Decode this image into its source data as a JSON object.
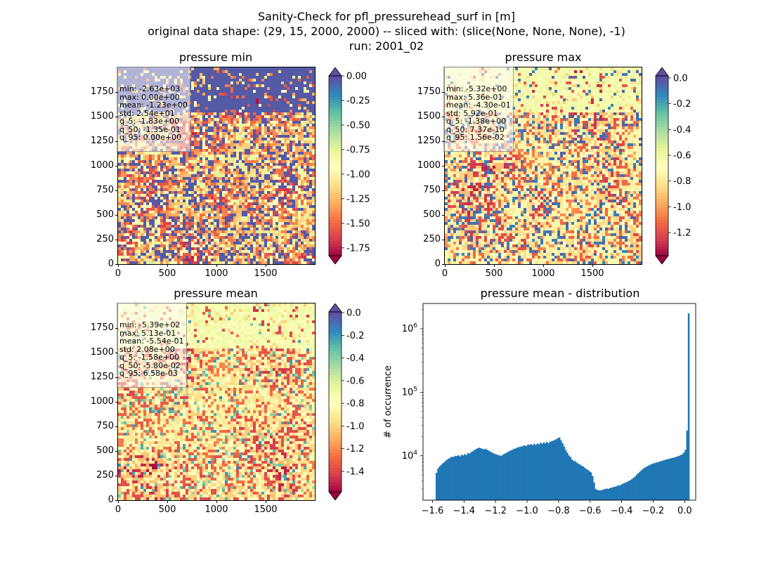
{
  "figure": {
    "title_lines": [
      "Sanity-Check for pfl_pressurehead_surf in [m]",
      "original data shape: (29, 15, 2000, 2000) -- sliced with: (slice(None, None, None), -1)",
      "run: 2001_02"
    ]
  },
  "panels": [
    {
      "title": "pressure min",
      "stats": [
        "min: -2.63e+03",
        "max: 0.00e+00",
        "mean: -1.23e+00",
        "std: 2.54e+01",
        "q_5: -1.83e+00",
        "q_50: -1.35e-01",
        "q_95: 0.00e+00"
      ],
      "x_ticks": [
        "0",
        "500",
        "1000",
        "1500"
      ],
      "y_ticks": [
        "0",
        "250",
        "500",
        "750",
        "1000",
        "1250",
        "1500",
        "1750"
      ],
      "colorbar_ticks": [
        "0.00",
        "-0.25",
        "-0.50",
        "-0.75",
        "-1.00",
        "-1.25",
        "-1.50",
        "-1.75"
      ],
      "colorbar_values": [
        0.0,
        -0.25,
        -0.5,
        -0.75,
        -1.0,
        -1.25,
        -1.5,
        -1.75
      ],
      "colorbar_range": [
        -1.83,
        0.0
      ]
    },
    {
      "title": "pressure max",
      "stats": [
        "min: -5.32e+00",
        "max: 5.36e-01",
        "mean: -4.30e-01",
        "std: 5.92e-01",
        "q_5: -1.38e+00",
        "q_50: 7.37e-10",
        "q_95: 1.56e-02"
      ],
      "x_ticks": [
        "0",
        "500",
        "1000",
        "1500"
      ],
      "y_ticks": [
        "0",
        "250",
        "500",
        "750",
        "1000",
        "1250",
        "1500",
        "1750"
      ],
      "colorbar_ticks": [
        "0.0",
        "-0.2",
        "-0.4",
        "-0.6",
        "-0.8",
        "-1.0",
        "-1.2"
      ],
      "colorbar_values": [
        0.0,
        -0.2,
        -0.4,
        -0.6,
        -0.8,
        -1.0,
        -1.2
      ],
      "colorbar_range": [
        -1.38,
        0.016
      ]
    },
    {
      "title": "pressure mean",
      "stats": [
        "min: -5.39e+02",
        "max: 5.13e-01",
        "mean: -5.54e-01",
        "std: 2.08e+00",
        "q_5: -1.58e+00",
        "q_50: -5.80e-02",
        "q_95: 6.58e-03"
      ],
      "x_ticks": [
        "0",
        "500",
        "1000",
        "1500"
      ],
      "y_ticks": [
        "0",
        "250",
        "500",
        "750",
        "1000",
        "1250",
        "1500",
        "1750"
      ],
      "colorbar_ticks": [
        "0.0",
        "-0.2",
        "-0.4",
        "-0.6",
        "-0.8",
        "-1.0",
        "-1.2",
        "-1.4"
      ],
      "colorbar_values": [
        0.0,
        -0.2,
        -0.4,
        -0.6,
        -0.8,
        -1.0,
        -1.2,
        -1.4
      ],
      "colorbar_range": [
        -1.58,
        0.0066
      ]
    }
  ],
  "colors": {
    "spectral": [
      "#9e0142",
      "#d53e4f",
      "#f46d43",
      "#fdae61",
      "#fee08b",
      "#ffffbf",
      "#e6f598",
      "#abdda4",
      "#66c2a5",
      "#3288bd",
      "#5e4fa2"
    ],
    "hist_bar": "#1f77b4"
  },
  "chart_data": {
    "type": "bar",
    "title": "pressure mean - distribution",
    "xlabel": "",
    "ylabel": "# of occurrence",
    "yscale": "log",
    "xlim": [
      -1.66,
      0.07
    ],
    "ylim": [
      2000,
      2500000
    ],
    "x_ticks": [
      "−1.6",
      "−1.4",
      "−1.2",
      "−1.0",
      "−0.8",
      "−0.6",
      "−0.4",
      "−0.2",
      "0.0"
    ],
    "x_tick_values": [
      -1.6,
      -1.4,
      -1.2,
      -1.0,
      -0.8,
      -0.6,
      -0.4,
      -0.2,
      0.0
    ],
    "y_ticks": [
      "10^4",
      "10^5",
      "10^6"
    ],
    "y_tick_values": [
      10000,
      100000,
      1000000
    ],
    "bin_start": -1.58,
    "bin_width": 0.01,
    "counts": [
      5400,
      6300,
      6800,
      7200,
      7600,
      8000,
      8400,
      8800,
      9100,
      9400,
      9700,
      9600,
      10000,
      9900,
      10200,
      9800,
      10400,
      10100,
      10600,
      10300,
      11000,
      10800,
      11400,
      11800,
      12300,
      12700,
      13100,
      13400,
      13200,
      12900,
      12600,
      12900,
      12500,
      12100,
      11700,
      11300,
      11000,
      10700,
      10500,
      10300,
      10100,
      10000,
      10300,
      10700,
      11000,
      11400,
      11800,
      12100,
      12400,
      12800,
      13000,
      13400,
      13600,
      13900,
      14000,
      14300,
      14600,
      14200,
      15000,
      14800,
      15300,
      14600,
      15400,
      14800,
      15600,
      15100,
      16000,
      15500,
      16200,
      15700,
      16500,
      15800,
      16600,
      16900,
      17300,
      17700,
      18300,
      18900,
      19500,
      17500,
      15700,
      14000,
      12300,
      11200,
      10100,
      9600,
      8700,
      8300,
      8200,
      7800,
      7500,
      7300,
      7000,
      6800,
      6500,
      6200,
      6000,
      5700,
      5500,
      4800,
      3800,
      3000,
      2900,
      2850,
      2850,
      2900,
      2950,
      3000,
      3050,
      3000,
      3100,
      3150,
      3200,
      3250,
      3300,
      3400,
      3400,
      3500,
      3600,
      3700,
      3800,
      3900,
      4000,
      4150,
      4300,
      4500,
      4700,
      5000,
      5300,
      5600,
      5900,
      6200,
      6500,
      6700,
      6900,
      7100,
      7300,
      7500,
      7600,
      7800,
      7900,
      8000,
      8200,
      8300,
      8500,
      8600,
      8800,
      8900,
      9000,
      9200,
      9300,
      9400,
      9600,
      9800,
      10000,
      10300,
      10600,
      11200,
      12500,
      25000,
      1750000
    ]
  }
}
